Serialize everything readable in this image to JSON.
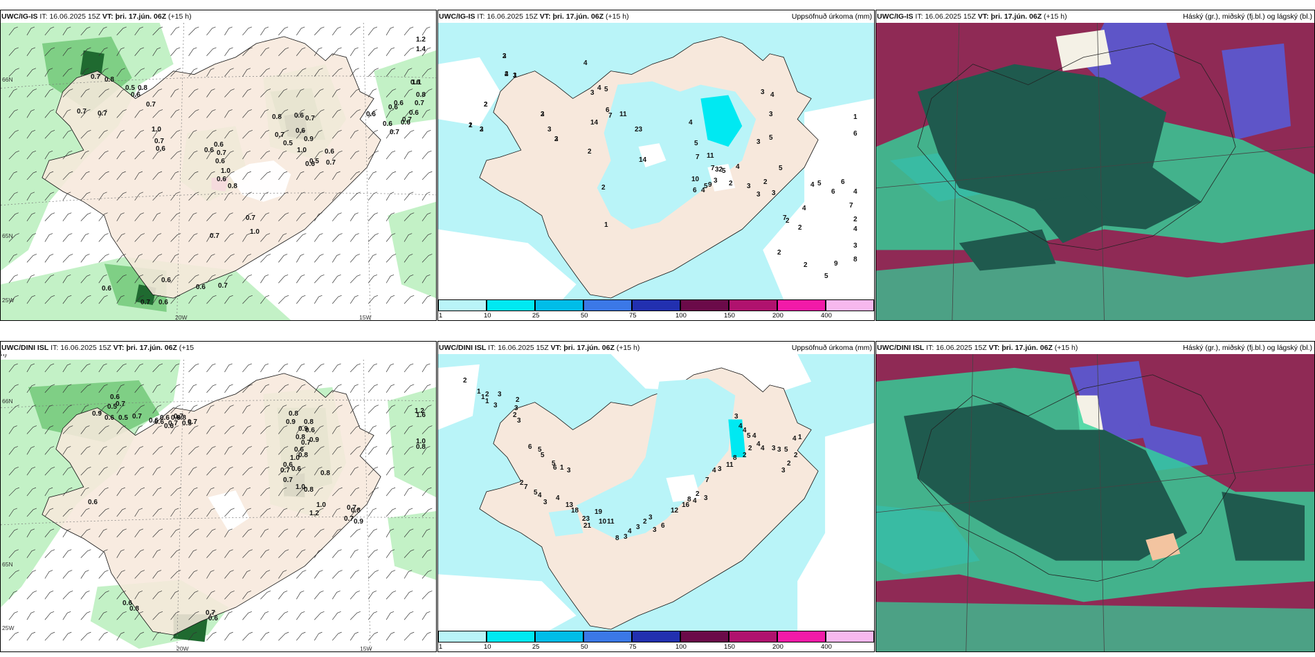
{
  "colors": {
    "land": "#f7e8dc",
    "precip_light": "#c3f1c6",
    "precip_mid": "#7fcf85",
    "precip_dark": "#1f6a30",
    "cyan_light": "#b9f4f8",
    "cyan": "#00e9f2",
    "cloud_bg": "#8f2a55",
    "cloud_green": "#2fd49a",
    "cloud_dark": "#1f5a4e",
    "cloud_blue": "#5e55c8"
  },
  "panels": [
    {
      "id": "tl",
      "model": "UWC/IG-IS",
      "it_label": "IT:",
      "it": "16.06.2025 15Z",
      "vt_label": "VT:",
      "vt": "þri. 17.jún. 06Z",
      "lead": "(+15 h)",
      "right": "",
      "lat_labels": [
        "66N",
        "65N",
        "25W"
      ],
      "lon_labels": [
        "20W",
        "15W"
      ],
      "labels": [
        "0.7",
        "0.8",
        "0.5",
        "0.7",
        "0.7",
        "0.8",
        "0.6",
        "0.7",
        "1.0",
        "0.7",
        "0.6",
        "0.6",
        "0.6",
        "0.7",
        "0.6",
        "1.0",
        "0.6",
        "0.8",
        "0.7",
        "1.0",
        "0.7",
        "0.8",
        "0.7",
        "0.5",
        "0.7",
        "0.6",
        "0.6",
        "0.9",
        "1.0",
        "0.6",
        "0.5",
        "0.6",
        "0.7",
        "0.6",
        "1.2",
        "1.4",
        "1.1",
        "0.8",
        "0.6",
        "0.7",
        "0.6",
        "0.6",
        "0.7",
        "0.6",
        "0.6",
        "0.7",
        "0.6",
        "0.6",
        "0.7",
        "0.6",
        "0.6",
        "0.7",
        "0.6"
      ]
    },
    {
      "id": "tm",
      "model": "UWC/IG-IS",
      "it_label": "IT:",
      "it": "16.06.2025 15Z",
      "vt_label": "VT:",
      "vt": "þri. 17.jún. 06Z",
      "lead": "(+15 h)",
      "right": "Uppsöfnuð úrkoma (mm)",
      "labels": [
        "2",
        "4",
        "3",
        "2",
        "2",
        "2",
        "2",
        "2",
        "3",
        "2",
        "2",
        "1",
        "4",
        "3",
        "4",
        "5",
        "6",
        "7",
        "14",
        "11",
        "23",
        "14",
        "4",
        "5",
        "7",
        "11",
        "7",
        "32",
        "10",
        "6",
        "4",
        "5",
        "9",
        "3",
        "5",
        "2",
        "4",
        "3",
        "3",
        "2",
        "3",
        "7",
        "2",
        "2",
        "2",
        "4",
        "4",
        "5",
        "6",
        "6",
        "7",
        "6",
        "1",
        "4",
        "2",
        "4",
        "3",
        "8",
        "9",
        "5",
        "2",
        "5",
        "5",
        "4",
        "3",
        "3",
        "3",
        "3",
        "2",
        "1",
        "2",
        "1",
        "3",
        "3",
        "3"
      ],
      "legend": [
        "1",
        "10",
        "25",
        "50",
        "75",
        "100",
        "150",
        "200",
        "400"
      ]
    },
    {
      "id": "tr",
      "model": "UWC/IG-IS",
      "it_label": "IT:",
      "it": "16.06.2025 15Z",
      "vt_label": "VT:",
      "vt": "þri. 17.jún. 06Z",
      "lead": "(+15 h)",
      "right": "Háský (gr.), miðský (fj.bl.) og lágský (bl.)"
    },
    {
      "id": "bl",
      "model": "UWC/DINI ISL",
      "it_label": "IT:",
      "it": "16.06.2025 15Z",
      "vt_label": "VT:",
      "vt": "þri. 17.jún. 06Z",
      "lead": "(+15",
      "wrap": "h)",
      "right": "",
      "lat_labels": [
        "66N",
        "65N",
        "25W"
      ],
      "lon_labels": [
        "20W",
        "15W"
      ],
      "labels": [
        "0.6",
        "0.7",
        "0.5",
        "0.9",
        "0.6",
        "0.5",
        "0.7",
        "0.6",
        "0.6",
        "0.6",
        "0.6",
        "0.7",
        "0.7",
        "0.5",
        "0.7",
        "0.8",
        "0.8",
        "0.6",
        "0.8",
        "0.9",
        "0.9",
        "0.8",
        "0.6",
        "0.9",
        "0.8",
        "0.7",
        "0.6",
        "0.8",
        "1.0",
        "0.6",
        "0.7",
        "0.7",
        "0.6",
        "1.0",
        "0.8",
        "1.0",
        "1.2",
        "0.8",
        "0.7",
        "0.8",
        "0.7",
        "0.9",
        "1.2",
        "1.6",
        "1.0",
        "0.8",
        "0.6",
        "0.8",
        "0.7",
        "0.6"
      ]
    },
    {
      "id": "bm",
      "model": "UWC/DINI ISL",
      "it_label": "IT:",
      "it": "16.06.2025 15Z",
      "vt_label": "VT:",
      "vt": "þri. 17.jún. 06Z",
      "lead": "(+15 h)",
      "right": "Uppsöfnuð úrkoma (mm)",
      "labels": [
        "2",
        "1",
        "2",
        "1",
        "1",
        "3",
        "3",
        "2",
        "3",
        "2",
        "3",
        "6",
        "5",
        "5",
        "5",
        "6",
        "1",
        "3",
        "2",
        "7",
        "5",
        "4",
        "3",
        "4",
        "13",
        "18",
        "23",
        "21",
        "19",
        "10",
        "11",
        "8",
        "3",
        "4",
        "3",
        "2",
        "3",
        "3",
        "6",
        "12",
        "16",
        "8",
        "4",
        "2",
        "3",
        "7",
        "4",
        "3",
        "11",
        "8",
        "2",
        "2",
        "3",
        "4",
        "4",
        "5",
        "4",
        "4",
        "4",
        "3",
        "3",
        "5",
        "4",
        "1",
        "2",
        "2",
        "3"
      ],
      "legend": [
        "1",
        "10",
        "25",
        "50",
        "75",
        "100",
        "150",
        "200",
        "400"
      ]
    },
    {
      "id": "br",
      "model": "UWC/DINI ISL",
      "it_label": "IT:",
      "it": "16.06.2025 15Z",
      "vt_label": "VT:",
      "vt": "þri. 17.jún. 06Z",
      "lead": "(+15 h)",
      "right": "Háský (gr.), miðský (fj.bl.) og lágský (bl.)"
    }
  ]
}
